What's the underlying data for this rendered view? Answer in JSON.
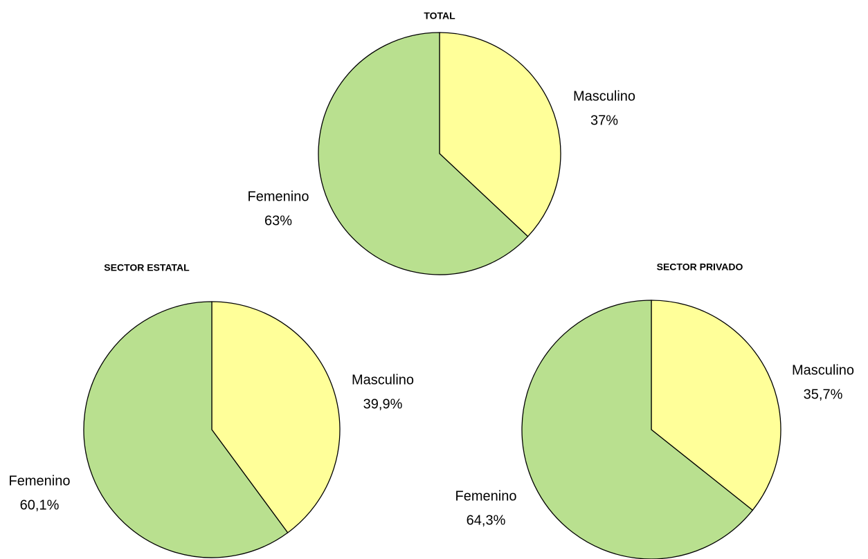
{
  "chart_data": [
    {
      "type": "pie",
      "title": "TOTAL",
      "categories": [
        "Masculino",
        "Femenino"
      ],
      "values": [
        37,
        63
      ],
      "value_labels": [
        "37%",
        "63%"
      ],
      "colors": [
        "#ffff99",
        "#b9e08f"
      ]
    },
    {
      "type": "pie",
      "title": "SECTOR ESTATAL",
      "categories": [
        "Masculino",
        "Femenino"
      ],
      "values": [
        39.9,
        60.1
      ],
      "value_labels": [
        "39,9%",
        "60,1%"
      ],
      "colors": [
        "#ffff99",
        "#b9e08f"
      ]
    },
    {
      "type": "pie",
      "title": "SECTOR PRIVADO",
      "categories": [
        "Masculino",
        "Femenino"
      ],
      "values": [
        35.7,
        64.3
      ],
      "value_labels": [
        "35,7%",
        "64,3%"
      ],
      "colors": [
        "#ffff99",
        "#b9e08f"
      ]
    }
  ]
}
